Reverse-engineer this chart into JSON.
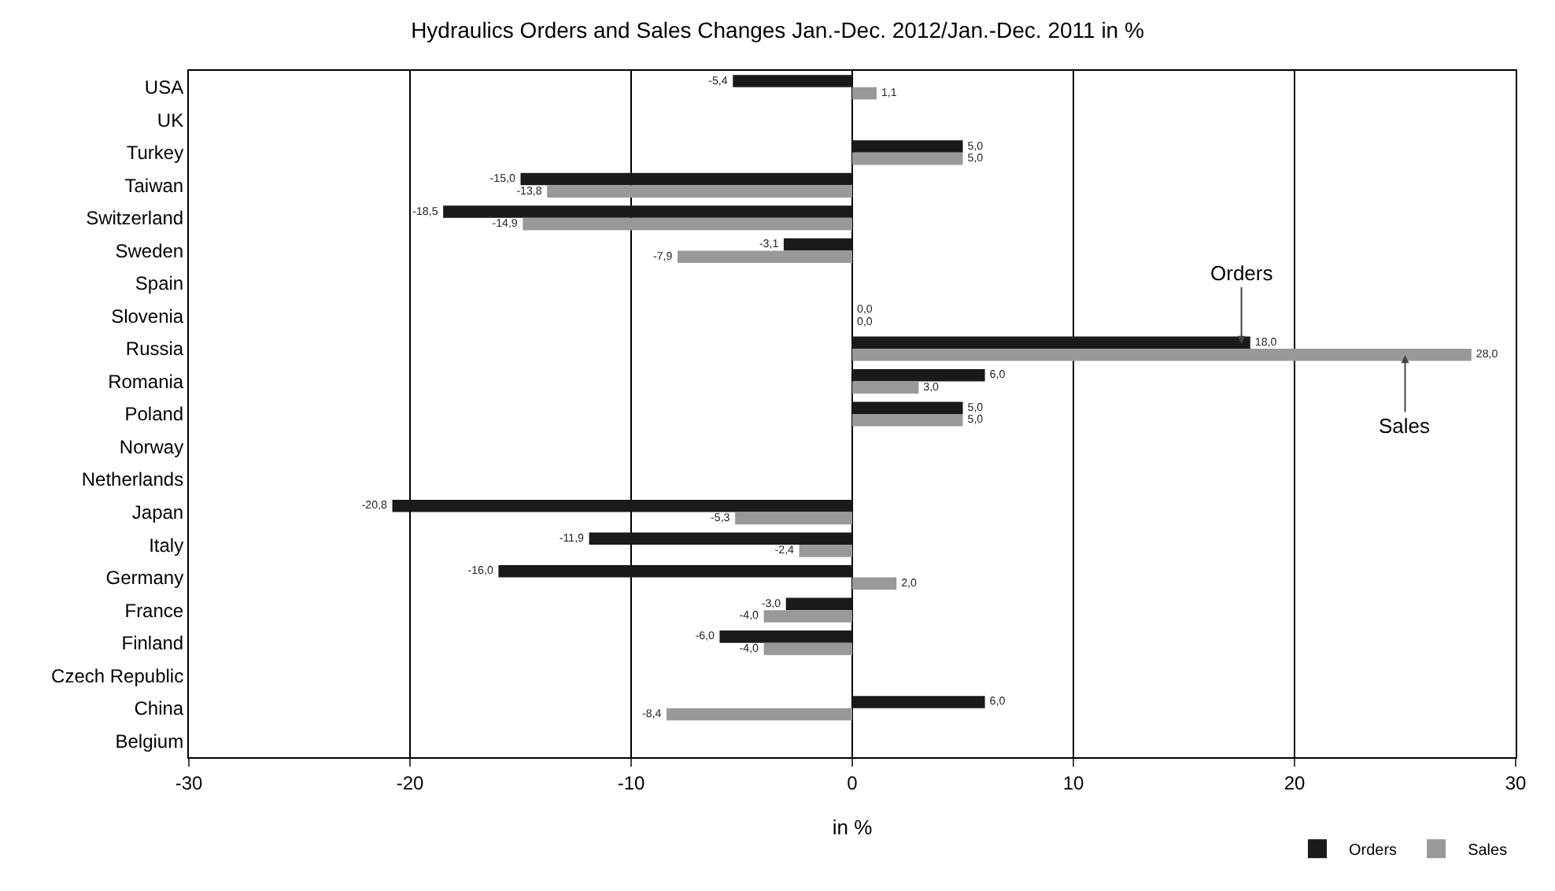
{
  "chart_data": {
    "type": "bar",
    "orientation": "horizontal",
    "title": "Hydraulics Orders and Sales Changes Jan.-Dec. 2012/Jan.-Dec. 2011 in %",
    "xlabel": "in %",
    "categories": [
      "USA",
      "UK",
      "Turkey",
      "Taiwan",
      "Switzerland",
      "Sweden",
      "Spain",
      "Slovenia",
      "Russia",
      "Romania",
      "Poland",
      "Norway",
      "Netherlands",
      "Japan",
      "Italy",
      "Germany",
      "France",
      "Finland",
      "Czech Republic",
      "China",
      "Belgium"
    ],
    "series": [
      {
        "name": "Orders",
        "color": "#1a1a1a",
        "values": [
          -5.4,
          null,
          5.0,
          -15.0,
          -18.5,
          -3.1,
          null,
          0.0,
          18.0,
          6.0,
          5.0,
          null,
          null,
          -20.8,
          -11.9,
          -16.0,
          -3.0,
          -6.0,
          null,
          6.0,
          null
        ],
        "value_labels": [
          "-5,4",
          null,
          "5,0",
          "-15,0",
          "-18,5",
          "-3,1",
          null,
          "0,0",
          "18,0",
          "6,0",
          "5,0",
          null,
          null,
          "-20,8",
          "-11,9",
          "-16,0",
          "-3,0",
          "-6,0",
          null,
          "6,0",
          null
        ]
      },
      {
        "name": "Sales",
        "color": "#999999",
        "values": [
          1.1,
          null,
          5.0,
          -13.8,
          -14.9,
          -7.9,
          null,
          0.0,
          28.0,
          3.0,
          5.0,
          null,
          null,
          -5.3,
          -2.4,
          2.0,
          -4.0,
          -4.0,
          null,
          -8.4,
          null
        ],
        "value_labels": [
          "1,1",
          null,
          "5,0",
          "-13,8",
          "-14,9",
          "-7,9",
          null,
          "0,0",
          "28,0",
          "3,0",
          "5,0",
          null,
          null,
          "-5,3",
          "-2,4",
          "2,0",
          "-4,0",
          "-4,0",
          null,
          "-8,4",
          null
        ]
      }
    ],
    "xlim": [
      -30,
      30
    ],
    "xticks": [
      -30,
      -20,
      -10,
      0,
      10,
      20,
      30
    ],
    "grid": "x",
    "legend": "bottom right",
    "annotations": [
      {
        "text": "Orders",
        "x": 17.6,
        "y": "Russia"
      },
      {
        "text": "Sales",
        "x": 25,
        "y": "Russia"
      }
    ]
  }
}
